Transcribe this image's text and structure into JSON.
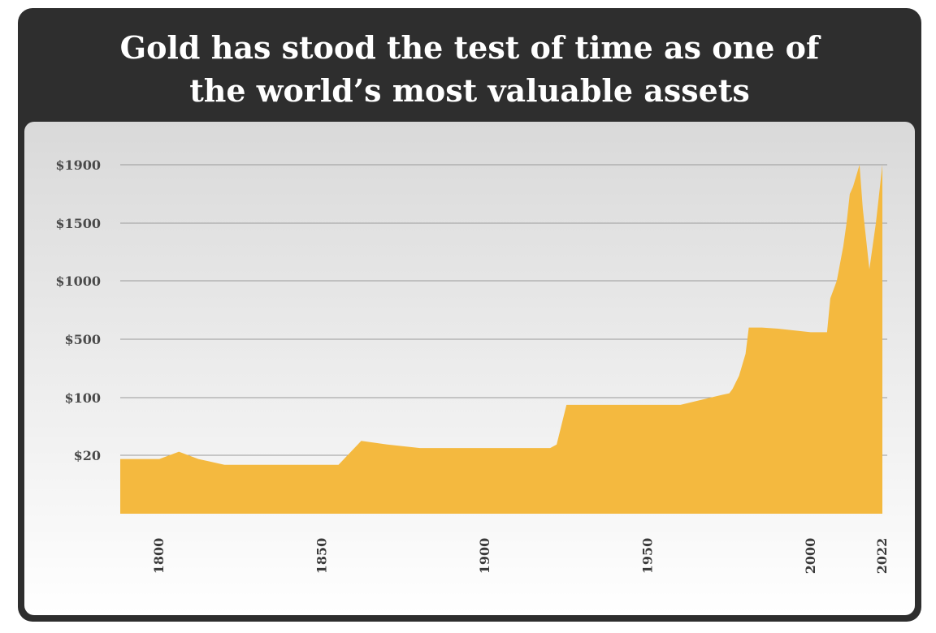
{
  "chart_data": {
    "type": "area",
    "title_lines": [
      "Gold has stood the test of time as one of",
      "the world’s most valuable assets"
    ],
    "xlabel": "",
    "ylabel": "",
    "xlim": [
      1788,
      2022
    ],
    "y_ticks": [
      {
        "value": 20,
        "label": "$20"
      },
      {
        "value": 100,
        "label": "$100"
      },
      {
        "value": 500,
        "label": "$500"
      },
      {
        "value": 1000,
        "label": "$1000"
      },
      {
        "value": 1500,
        "label": "$1500"
      },
      {
        "value": 1900,
        "label": "$1900"
      }
    ],
    "x_ticks": [
      {
        "value": 1800,
        "label": "1800"
      },
      {
        "value": 1850,
        "label": "1850"
      },
      {
        "value": 1900,
        "label": "1900"
      },
      {
        "value": 1950,
        "label": "1950"
      },
      {
        "value": 2000,
        "label": "2000"
      },
      {
        "value": 2022,
        "label": "2022"
      }
    ],
    "grid": true,
    "colors": {
      "area": "#f4b93f",
      "grid": "#9a9a9a",
      "frame": "#2e2e2e"
    },
    "series": [
      {
        "x": [
          1788,
          1800,
          1806,
          1812,
          1820,
          1830,
          1845,
          1855,
          1862,
          1870,
          1880,
          1900,
          1920,
          1922,
          1925,
          1934,
          1950,
          1960,
          1971,
          1975,
          1976,
          1978,
          1980,
          1981,
          1985,
          1990,
          2000,
          2005,
          2006,
          2008,
          2010,
          2011,
          2012,
          2013,
          2015,
          2016,
          2018,
          2020,
          2022
        ],
        "y": [
          19,
          19,
          25,
          19,
          17,
          17,
          17,
          17,
          40,
          35,
          30,
          30,
          30,
          35,
          90,
          90,
          90,
          90,
          110,
          130,
          160,
          250,
          400,
          600,
          600,
          590,
          560,
          560,
          850,
          1000,
          1300,
          1500,
          1700,
          1750,
          1900,
          1600,
          1100,
          1500,
          1900
        ]
      }
    ]
  }
}
